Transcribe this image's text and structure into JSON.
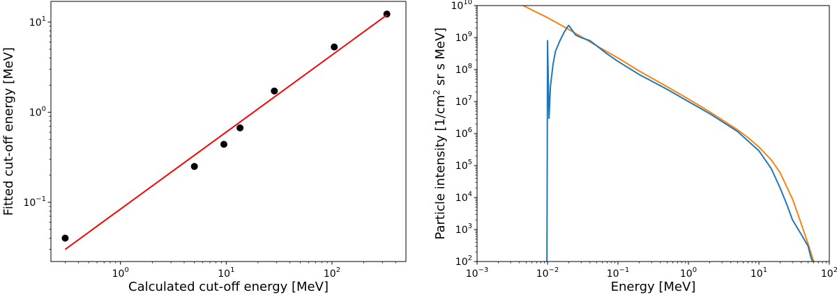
{
  "chart_data": [
    {
      "type": "scatter",
      "title": "",
      "xlabel": "Calculated cut-off energy [MeV]",
      "ylabel": "Fitted cut-off energy [MeV]",
      "xscale": "log",
      "yscale": "log",
      "xlim": [
        0.22,
        500
      ],
      "ylim": [
        0.022,
        17
      ],
      "grid": false,
      "x_ticks": [
        {
          "value": 1,
          "base": "10",
          "exp": "0"
        },
        {
          "value": 10,
          "base": "10",
          "exp": "1"
        },
        {
          "value": 100,
          "base": "10",
          "exp": "2"
        }
      ],
      "y_ticks": [
        {
          "value": 0.1,
          "base": "10",
          "exp": "−1"
        },
        {
          "value": 1,
          "base": "10",
          "exp": "0"
        },
        {
          "value": 10,
          "base": "10",
          "exp": "1"
        }
      ],
      "series": [
        {
          "kind": "points",
          "color": "#000000",
          "x": [
            0.3,
            5.0,
            9.5,
            13.5,
            28.5,
            105,
            330
          ],
          "y": [
            0.04,
            0.25,
            0.44,
            0.67,
            1.72,
            5.3,
            12.3
          ]
        },
        {
          "kind": "fit-line",
          "color": "#ff0000",
          "x": [
            0.3,
            330
          ],
          "y": [
            0.03,
            12.0
          ]
        }
      ]
    },
    {
      "type": "line",
      "title": "",
      "xlabel": "Energy [MeV]",
      "ylabel_main": "Particle intensity [1/cm",
      "ylabel_sup": "2",
      "ylabel_tail": " sr s MeV]",
      "xscale": "log",
      "yscale": "log",
      "xlim": [
        0.001,
        100
      ],
      "ylim": [
        100,
        10000000000
      ],
      "grid": false,
      "x_ticks": [
        {
          "value": 0.001,
          "base": "10",
          "exp": "−3"
        },
        {
          "value": 0.01,
          "base": "10",
          "exp": "−2"
        },
        {
          "value": 0.1,
          "base": "10",
          "exp": "−1"
        },
        {
          "value": 1,
          "base": "10",
          "exp": "0"
        },
        {
          "value": 10,
          "base": "10",
          "exp": "1"
        },
        {
          "value": 100,
          "base": "10",
          "exp": "2"
        }
      ],
      "y_ticks": [
        {
          "value": 100,
          "base": "10",
          "exp": "2"
        },
        {
          "value": 1000,
          "base": "10",
          "exp": "3"
        },
        {
          "value": 10000,
          "base": "10",
          "exp": "4"
        },
        {
          "value": 100000,
          "base": "10",
          "exp": "5"
        },
        {
          "value": 1000000,
          "base": "10",
          "exp": "6"
        },
        {
          "value": 10000000,
          "base": "10",
          "exp": "7"
        },
        {
          "value": 100000000,
          "base": "10",
          "exp": "8"
        },
        {
          "value": 1000000000,
          "base": "10",
          "exp": "9"
        },
        {
          "value": 10000000000,
          "base": "10",
          "exp": "10"
        }
      ],
      "series": [
        {
          "kind": "model",
          "color": "#ff7f0e",
          "x": [
            0.0045,
            0.01,
            0.02,
            0.05,
            0.1,
            0.2,
            0.5,
            1,
            2,
            3,
            5,
            7,
            10,
            15,
            20,
            30,
            40,
            50,
            60
          ],
          "y": [
            10000000000,
            4200000000,
            1800000000,
            550000000,
            230000000,
            90000000,
            29000000,
            12000000,
            4800000,
            2700000,
            1300000,
            750000,
            380000,
            150000,
            60000,
            9000,
            1500,
            350,
            100
          ]
        },
        {
          "kind": "measured",
          "color": "#1f77b4",
          "x": [
            0.0098,
            0.0099,
            0.01,
            0.0105,
            0.011,
            0.012,
            0.013,
            0.015,
            0.017,
            0.019,
            0.02,
            0.022,
            0.025,
            0.03,
            0.04,
            0.05,
            0.07,
            0.1,
            0.2,
            0.5,
            1,
            2,
            5,
            10,
            15,
            20,
            25,
            30,
            40,
            50,
            55,
            58
          ],
          "y": [
            100,
            100000,
            800000000,
            3000000,
            30000000,
            150000000,
            380000000,
            800000000,
            1400000000,
            2100000000,
            2400000000,
            1800000000,
            1200000000,
            1000000000,
            800000000,
            550000000,
            310000000,
            180000000,
            70000000,
            24000000,
            10000000,
            4200000,
            1150000,
            290000,
            80000,
            20000,
            6000,
            2000,
            700,
            300,
            130,
            100
          ]
        }
      ]
    }
  ]
}
